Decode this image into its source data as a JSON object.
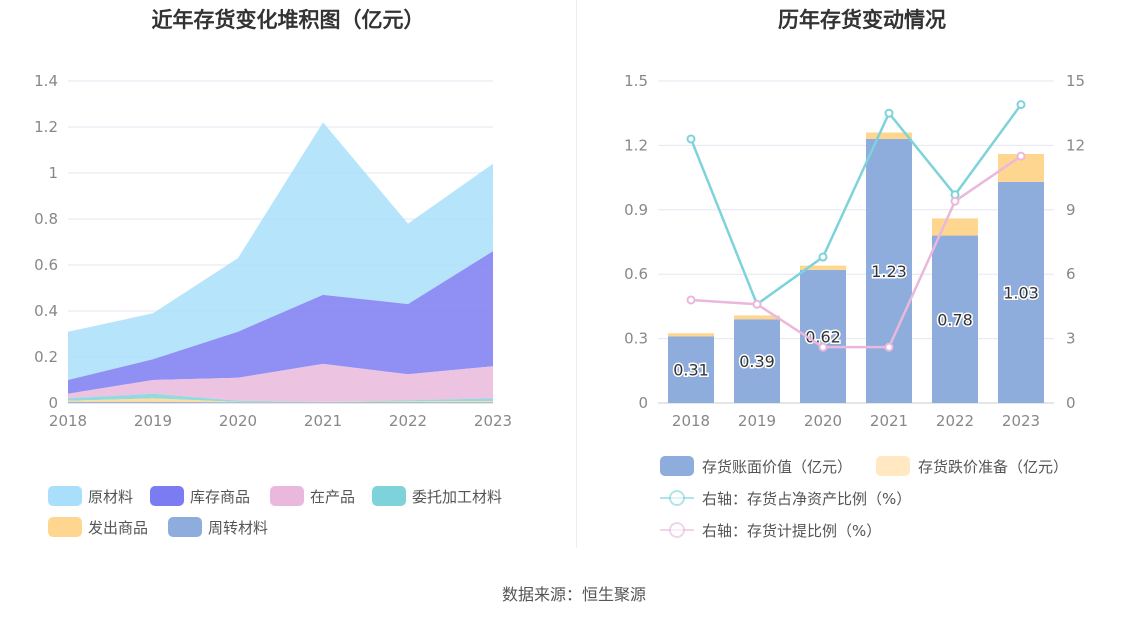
{
  "source_label": "数据来源：恒生聚源",
  "chart_data": [
    {
      "type": "area",
      "title": "近年存货变化堆积图（亿元）",
      "x": [
        "2018",
        "2019",
        "2020",
        "2021",
        "2022",
        "2023"
      ],
      "ylim": [
        0,
        1.4
      ],
      "yticks": [
        "0",
        "0.2",
        "0.4",
        "0.6",
        "0.8",
        "1",
        "1.2",
        "1.4"
      ],
      "stacked": true,
      "legend_position": "bottom-left",
      "series": [
        {
          "name": "周转材料",
          "color": "#8EACDC",
          "values": [
            0.005,
            0.005,
            0.003,
            0.003,
            0.004,
            0.004
          ]
        },
        {
          "name": "发出商品",
          "color": "#FFD68F",
          "values": [
            0.005,
            0.015,
            0.002,
            0.002,
            0.003,
            0.004
          ]
        },
        {
          "name": "委托加工材料",
          "color": "#7ED3DA",
          "values": [
            0.01,
            0.02,
            0.005,
            0.0,
            0.005,
            0.012
          ]
        },
        {
          "name": "在产品",
          "color": "#E9B8DC",
          "values": [
            0.02,
            0.06,
            0.1,
            0.165,
            0.113,
            0.14
          ]
        },
        {
          "name": "库存商品",
          "color": "#7C7CF2",
          "values": [
            0.06,
            0.09,
            0.2,
            0.3,
            0.305,
            0.5
          ]
        },
        {
          "name": "原材料",
          "color": "#A9DFFA",
          "values": [
            0.21,
            0.2,
            0.32,
            0.75,
            0.35,
            0.38
          ]
        }
      ],
      "legend_order": [
        "原材料",
        "库存商品",
        "在产品",
        "委托加工材料",
        "发出商品",
        "周转材料"
      ]
    },
    {
      "type": "bar",
      "title": "历年存货变动情况",
      "categories": [
        "2018",
        "2019",
        "2020",
        "2021",
        "2022",
        "2023"
      ],
      "ylim": [
        0,
        1.5
      ],
      "yticks": [
        "0",
        "0.3",
        "0.6",
        "0.9",
        "1.2",
        "1.5"
      ],
      "y2lim": [
        0,
        15
      ],
      "y2ticks": [
        "0",
        "3",
        "6",
        "9",
        "12",
        "15"
      ],
      "stacked": true,
      "legend_position": "bottom",
      "series": [
        {
          "name": "存货账面价值（亿元）",
          "color": "#8EACDC",
          "values": [
            0.31,
            0.39,
            0.62,
            1.23,
            0.78,
            1.03
          ],
          "labels": [
            "0.31",
            "0.39",
            "0.62",
            "1.23",
            "0.78",
            "1.03"
          ]
        },
        {
          "name": "存货跌价准备（亿元）",
          "color": "#FFD68F",
          "values": [
            0.015,
            0.018,
            0.02,
            0.03,
            0.08,
            0.13
          ]
        }
      ],
      "line_series": [
        {
          "name": "右轴：存货占净资产比例（%）",
          "color": "#7ED3DA",
          "values": [
            12.3,
            4.6,
            6.8,
            13.5,
            9.7,
            13.9
          ]
        },
        {
          "name": "右轴：存货计提比例（%）",
          "color": "#E9B8DC",
          "values": [
            4.8,
            4.6,
            2.6,
            2.6,
            9.4,
            11.5
          ]
        }
      ]
    }
  ]
}
